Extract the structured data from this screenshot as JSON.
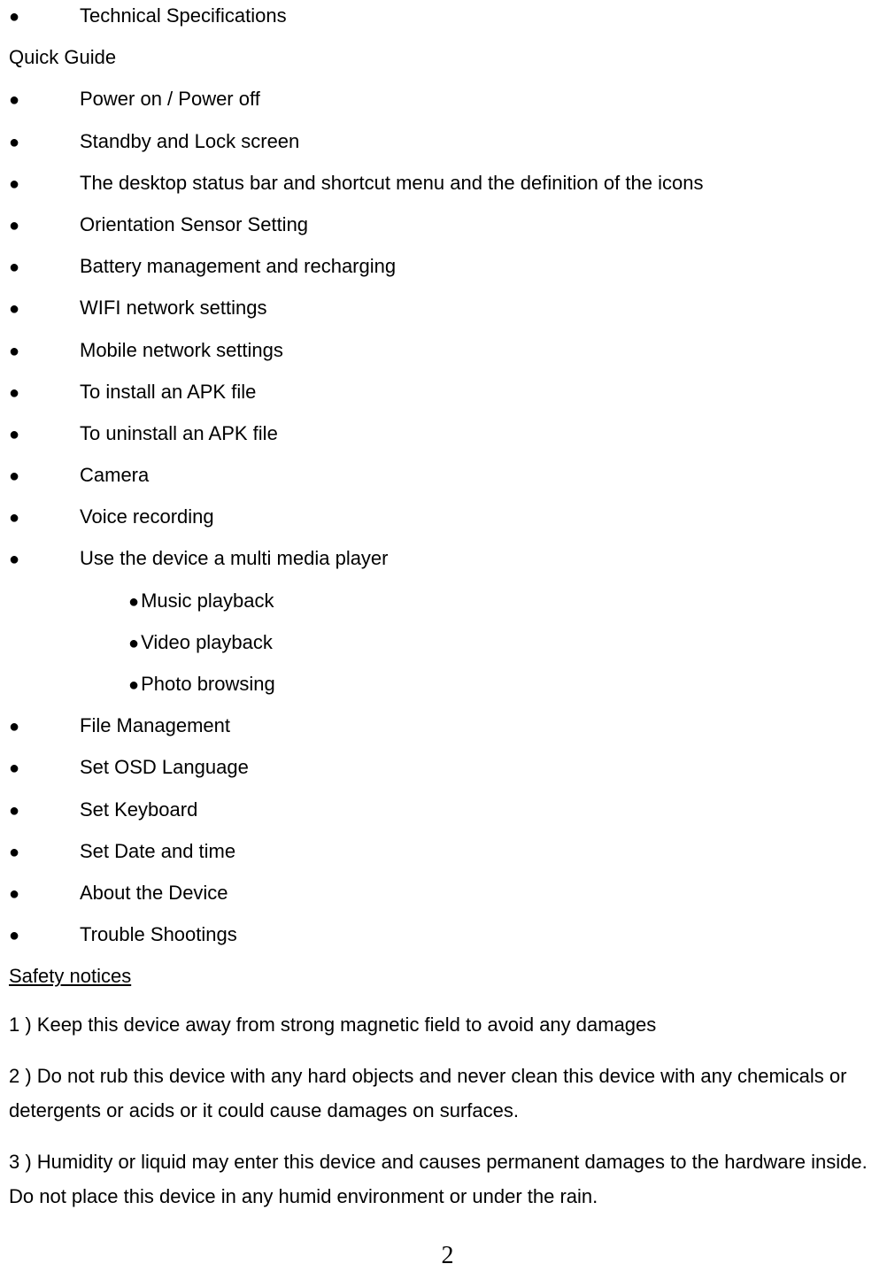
{
  "top_bullets": [
    "Technical Specifications"
  ],
  "quick_guide_label": "Quick Guide",
  "quick_guide_items": [
    "Power on / Power off",
    "Standby and Lock screen",
    "The desktop status bar and shortcut menu and the definition of the icons",
    "Orientation Sensor Setting",
    "Battery management and recharging",
    "WIFI network settings",
    "Mobile network settings",
    "To install an APK file",
    "To uninstall an APK file",
    "Camera",
    "Voice recording",
    "Use the device a multi media player"
  ],
  "nested_items": [
    "Music playback",
    "Video playback",
    "Photo browsing"
  ],
  "quick_guide_items_after": [
    "File Management",
    "Set OSD Language",
    "Set Keyboard",
    "Set Date and time",
    "About the Device",
    "Trouble Shootings"
  ],
  "safety_heading": "Safety notices",
  "safety_paragraphs": [
    "1 ) Keep this device away from strong magnetic field to avoid any damages",
    "2 ) Do not rub this device with any hard objects and never clean this device with any chemicals or detergents or acids or it could cause damages on surfaces.",
    "3 ) Humidity or liquid may enter this device and causes permanent damages to the hardware inside.   Do not place this device in any humid environment or under the rain."
  ],
  "page_number": "2",
  "bullet_glyph": "●"
}
